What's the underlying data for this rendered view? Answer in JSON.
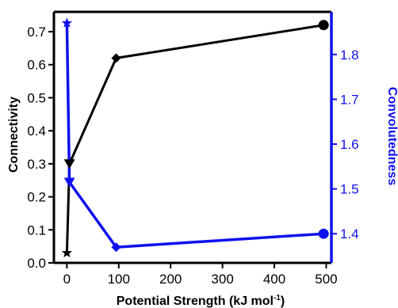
{
  "chart_data": {
    "type": "line",
    "x": [
      0,
      5,
      95,
      495
    ],
    "xlabel": "Potential Strength (kJ mol",
    "xlabel_superscript": "-1",
    "xlabel_suffix": ")",
    "xlim": [
      -25,
      510
    ],
    "xticks": [
      "0",
      "100",
      "200",
      "300",
      "400",
      "500"
    ],
    "xtick_values": [
      0,
      100,
      200,
      300,
      400,
      500
    ],
    "grid": false,
    "left_axis": {
      "label": "Connectivity",
      "color": "#000000",
      "ylim": [
        0.0,
        0.76
      ],
      "ticks": [
        "0.0",
        "0.1",
        "0.2",
        "0.3",
        "0.4",
        "0.5",
        "0.6",
        "0.7"
      ],
      "tick_values": [
        0.0,
        0.1,
        0.2,
        0.3,
        0.4,
        0.5,
        0.6,
        0.7
      ]
    },
    "right_axis": {
      "label": "Convolutedness",
      "color": "#1010ee",
      "ylim": [
        1.335,
        1.895
      ],
      "ticks": [
        "1.4",
        "1.5",
        "1.6",
        "1.7",
        "1.8"
      ],
      "tick_values": [
        1.4,
        1.5,
        1.6,
        1.7,
        1.8
      ]
    },
    "series": [
      {
        "axis": "left",
        "color": "#000000",
        "values": [
          0.03,
          0.3,
          0.62,
          0.72
        ],
        "markers": [
          "star",
          "triangle-down",
          "diamond",
          "circle"
        ]
      },
      {
        "axis": "right",
        "color": "#1010ee",
        "values": [
          1.87,
          1.515,
          1.37,
          1.4
        ],
        "markers": [
          "star",
          "triangle-down",
          "diamond",
          "circle"
        ]
      }
    ]
  }
}
